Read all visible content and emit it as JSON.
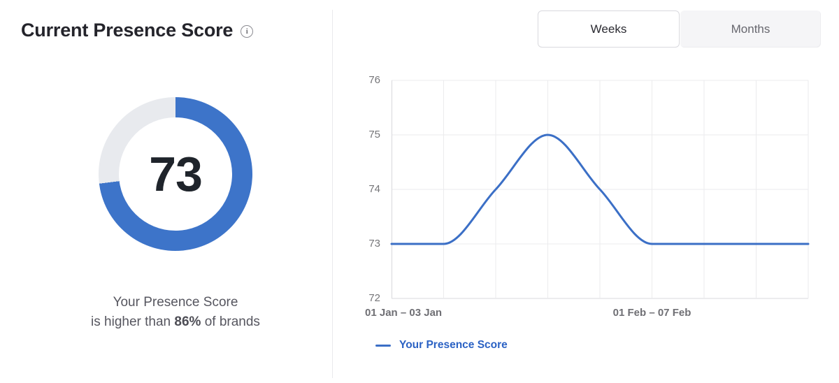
{
  "colors": {
    "donut_fill": "#3d74c9",
    "donut_track": "#e8eaee",
    "line_blue": "#3b6fc6",
    "legend_text": "#2b62c4",
    "grid_line": "#ebebed",
    "axis_line": "#d8d8dc"
  },
  "left_panel": {
    "title": "Current Presence Score",
    "score": "73",
    "score_percent": 73,
    "subtitle_line1": "Your Presence Score",
    "subtitle_line2_prefix": "is higher than ",
    "subtitle_line2_bold": "86%",
    "subtitle_line2_suffix": " of brands"
  },
  "tabs": [
    {
      "label": "Weeks",
      "active": true
    },
    {
      "label": "Months",
      "active": false
    }
  ],
  "chart_data": {
    "type": "line",
    "title": "",
    "series": [
      {
        "name": "Your Presence Score",
        "values": [
          73,
          73,
          74,
          75,
          74,
          73,
          73,
          73,
          73
        ]
      }
    ],
    "x_tick_labels": [
      "01 Jan – 03 Jan",
      "01 Feb – 07 Feb"
    ],
    "x_tick_indices": [
      0,
      5
    ],
    "y_ticks": [
      72,
      73,
      74,
      75,
      76
    ],
    "y_tick_labels": [
      "76",
      "75",
      "74",
      "73",
      "72"
    ],
    "ylim": [
      72,
      76
    ],
    "grid": true,
    "curve": "smooth-monotone",
    "legend_position": "bottom-left"
  }
}
